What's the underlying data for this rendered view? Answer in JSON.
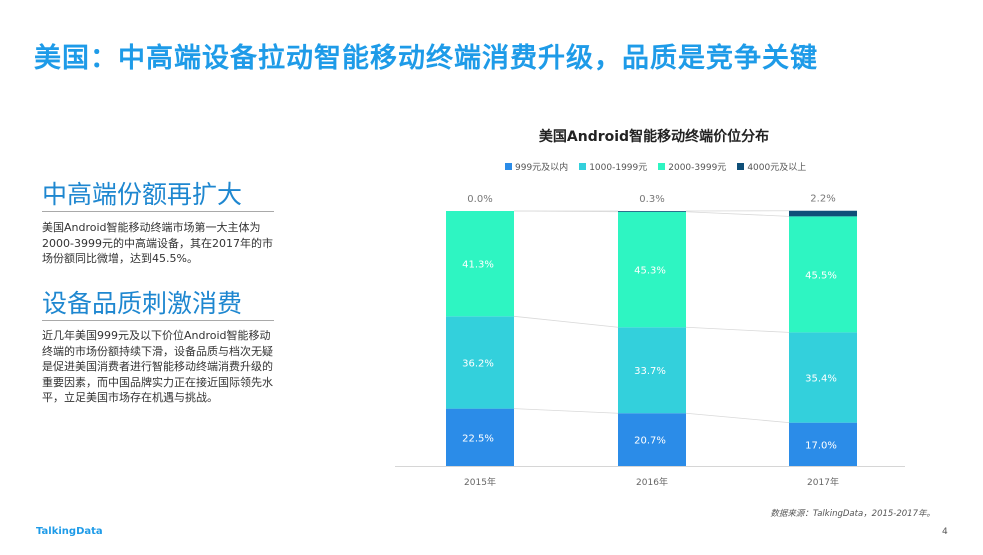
{
  "page": {
    "title": "美国：中高端设备拉动智能移动终端消费升级，品质是竞争关键",
    "section1_title": "中高端份额再扩大",
    "section1_text": "美国Android智能移动终端市场第一大主体为2000-3999元的中高端设备，其在2017年的市场份额同比微增，达到45.5%。",
    "section2_title": "设备品质刺激消费",
    "section2_text": "近几年美国999元及以下价位Android智能移动终端的市场份额持续下滑，设备品质与档次无疑是促进美国消费者进行智能移动终端消费升级的重要因素，而中国品牌实力正在接近国际领先水平，立足美国市场存在机遇与挑战。",
    "source": "数据来源：TalkingData，2015-2017年。",
    "logo": "TalkingData",
    "page_number": "4"
  },
  "chart_data": {
    "type": "bar",
    "stacked": true,
    "percent_stacked": true,
    "title": "美国Android智能移动终端价位分布",
    "categories": [
      "2015年",
      "2016年",
      "2017年"
    ],
    "series": [
      {
        "name": "999元及以内",
        "color": "#2b8ce8",
        "values": [
          22.5,
          20.7,
          17.0
        ],
        "labels": [
          "22.5%",
          "20.7%",
          "17.0%"
        ]
      },
      {
        "name": "1000-1999元",
        "color": "#33d0dc",
        "values": [
          36.2,
          33.7,
          35.4
        ],
        "labels": [
          "36.2%",
          "33.7%",
          "35.4%"
        ]
      },
      {
        "name": "2000-3999元",
        "color": "#2ef5c2",
        "values": [
          41.3,
          45.3,
          45.5
        ],
        "labels": [
          "41.3%",
          "45.3%",
          "45.5%"
        ]
      },
      {
        "name": "4000元及以上",
        "color": "#0f4f78",
        "values": [
          0.0,
          0.3,
          2.2
        ],
        "labels": [
          "0.0%",
          "0.3%",
          "2.2%"
        ]
      }
    ],
    "ylim": [
      0,
      100
    ],
    "legend_position": "top",
    "grid": false
  }
}
